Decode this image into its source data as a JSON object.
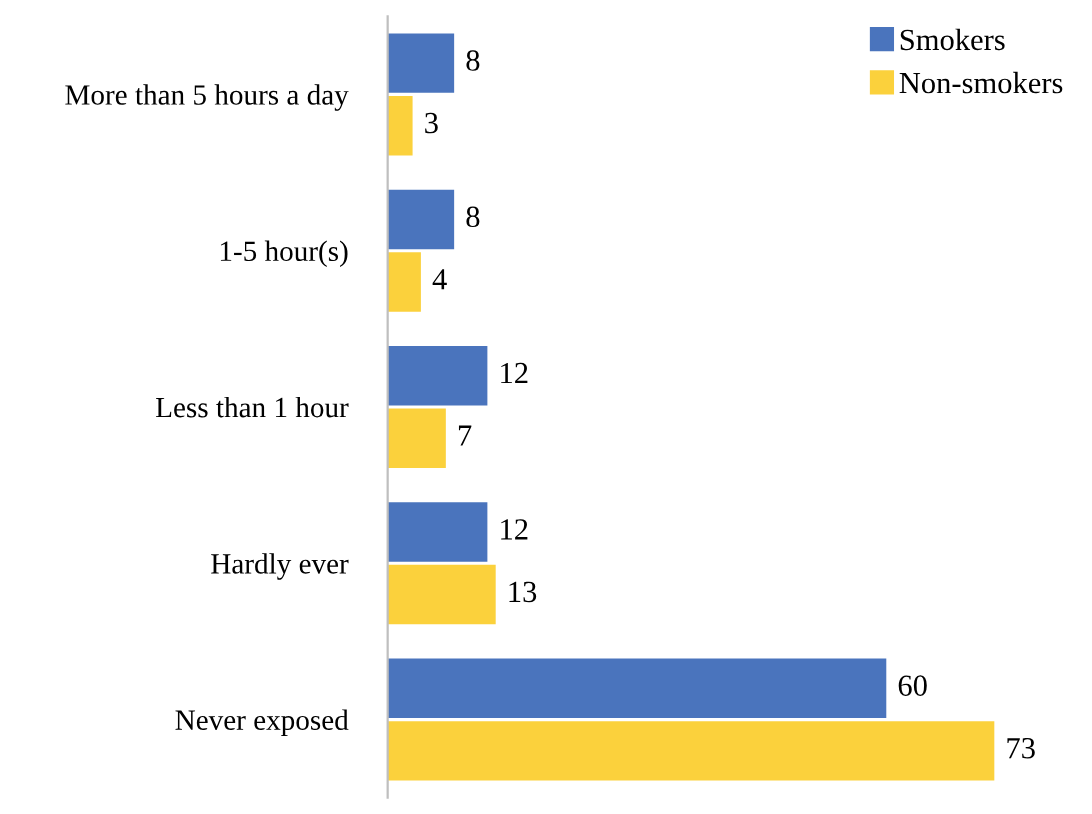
{
  "chart_data": {
    "type": "bar",
    "orientation": "horizontal",
    "categories": [
      "More than 5 hours a day",
      "1-5 hour(s)",
      "Less than 1 hour",
      "Hardly ever",
      "Never exposed"
    ],
    "series": [
      {
        "name": "Smokers",
        "color": "#4a74bd",
        "values": [
          8,
          8,
          12,
          12,
          60
        ]
      },
      {
        "name": "Non-smokers",
        "color": "#fbd13c",
        "values": [
          3,
          4,
          7,
          13,
          73
        ]
      }
    ],
    "data_labels": true,
    "legend": "top right",
    "grid": false
  }
}
